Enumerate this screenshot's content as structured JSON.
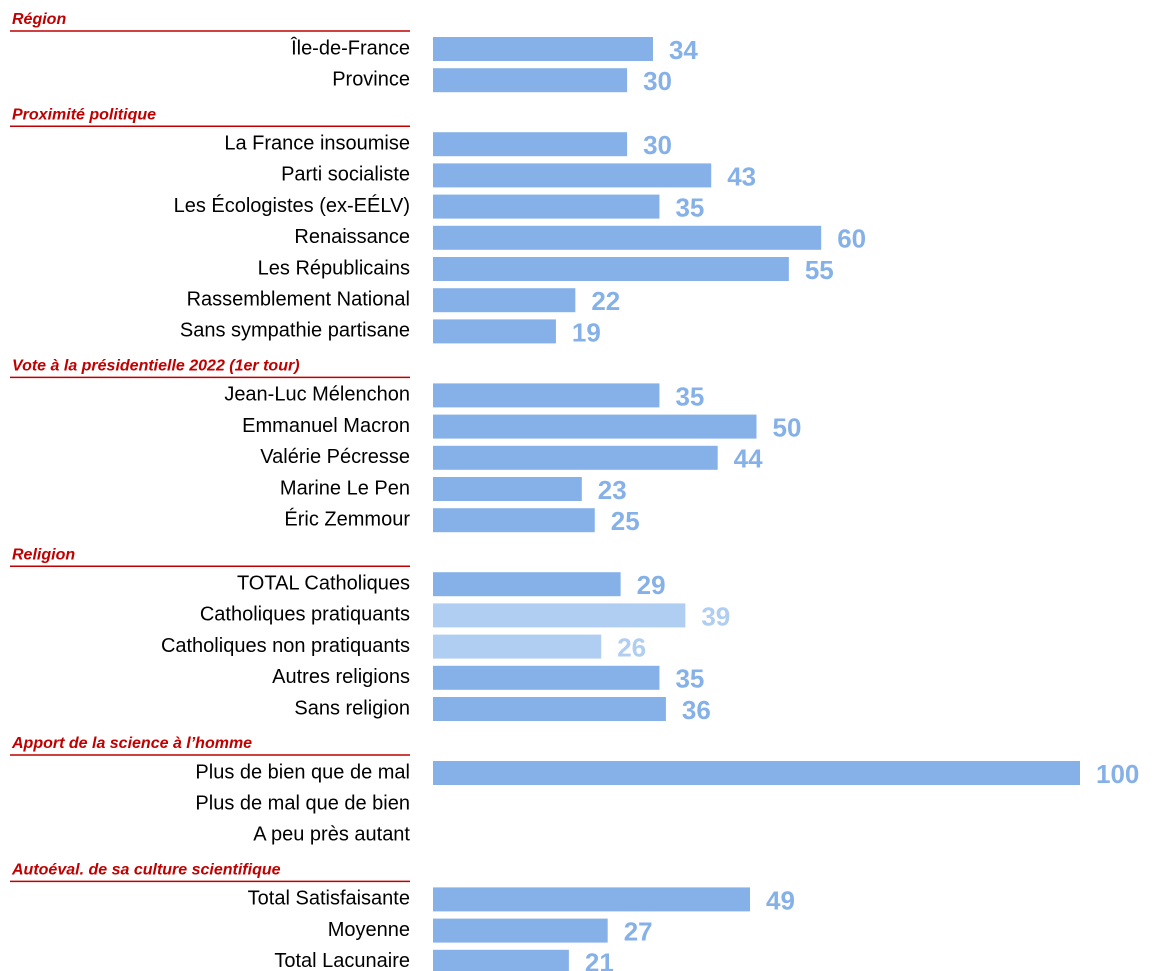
{
  "chart_data": {
    "type": "bar",
    "orientation": "horizontal",
    "xlim": [
      0,
      100
    ],
    "color": "#86b1e8",
    "groups": [
      {
        "title": "Région",
        "categories": [
          "Île-de-France",
          "Province"
        ],
        "values": [
          34,
          30
        ]
      },
      {
        "title": "Proximité politique",
        "categories": [
          "La France insoumise",
          "Parti socialiste",
          "Les Écologistes (ex-EÉLV)",
          "Renaissance",
          "Les Républicains",
          "Rassemblement National",
          "Sans sympathie partisane"
        ],
        "values": [
          30,
          43,
          35,
          60,
          55,
          22,
          19
        ]
      },
      {
        "title": "Vote à la présidentielle 2022 (1er tour)",
        "categories": [
          "Jean-Luc Mélenchon",
          "Emmanuel Macron",
          "Valérie Pécresse",
          "Marine Le Pen",
          "Éric Zemmour"
        ],
        "values": [
          35,
          50,
          44,
          23,
          25
        ]
      },
      {
        "title": "Religion",
        "categories": [
          "TOTAL Catholiques",
          "Catholiques pratiquants",
          "Catholiques non pratiquants",
          "Autres religions",
          "Sans religion"
        ],
        "values": [
          29,
          39,
          26,
          35,
          36
        ],
        "colors": [
          "#86b1e8",
          "#b0cdf2",
          "#b0cdf2",
          "#86b1e8",
          "#86b1e8"
        ]
      },
      {
        "title": "Apport de la science à l’homme",
        "categories": [
          "Plus de bien que de mal",
          "Plus de mal que de bien",
          "A peu près autant"
        ],
        "values": [
          100,
          null,
          null
        ]
      },
      {
        "title": "Autoéval. de sa culture scientifique",
        "categories": [
          "Total Satisfaisante",
          "Moyenne",
          "Total Lacunaire"
        ],
        "values": [
          49,
          27,
          21
        ]
      }
    ]
  }
}
